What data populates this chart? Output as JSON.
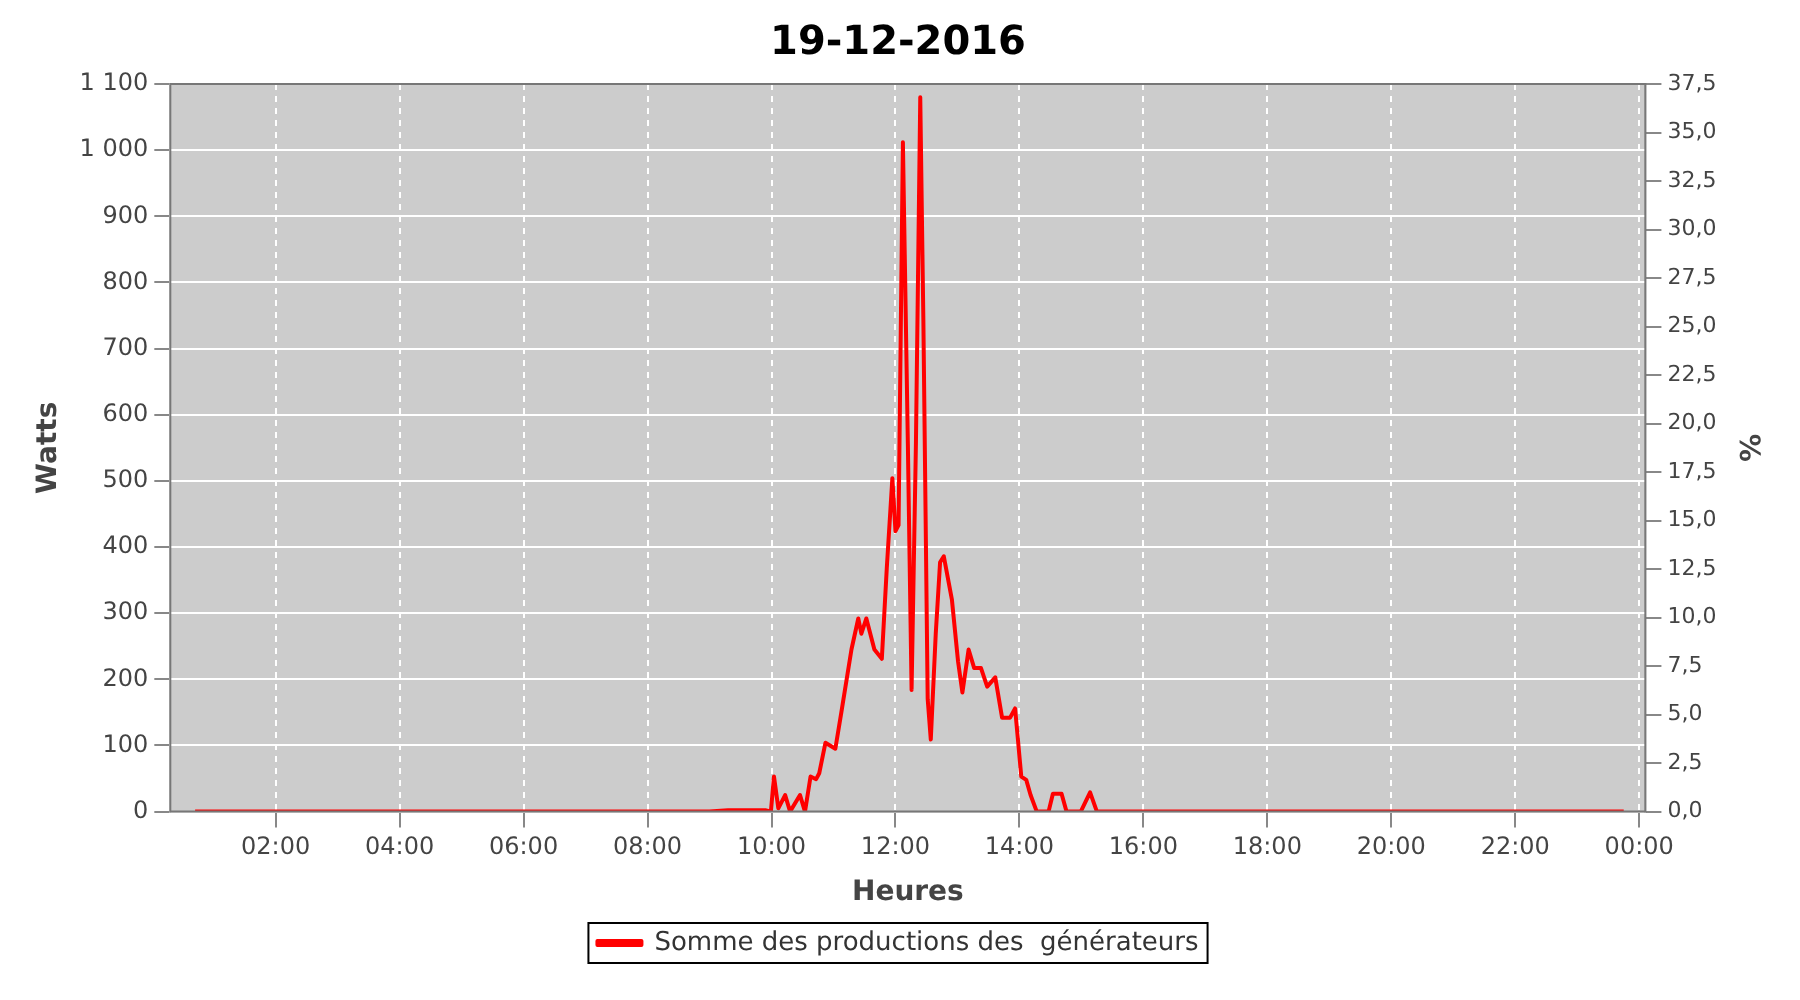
{
  "chart_data": {
    "type": "line",
    "title": "19-12-2016",
    "xlabel": "Heures",
    "ylabel": "Watts",
    "y2label": "%",
    "xlim": [
      0.3,
      24.1
    ],
    "xticks": [
      {
        "value": 2,
        "label": "02:00"
      },
      {
        "value": 4,
        "label": "04:00"
      },
      {
        "value": 6,
        "label": "06:00"
      },
      {
        "value": 8,
        "label": "08:00"
      },
      {
        "value": 10,
        "label": "10:00"
      },
      {
        "value": 12,
        "label": "12:00"
      },
      {
        "value": 14,
        "label": "14:00"
      },
      {
        "value": 16,
        "label": "16:00"
      },
      {
        "value": 18,
        "label": "18:00"
      },
      {
        "value": 20,
        "label": "20:00"
      },
      {
        "value": 22,
        "label": "22:00"
      },
      {
        "value": 24,
        "label": "00:00"
      }
    ],
    "ylim": [
      0,
      1100
    ],
    "yticks": [
      0,
      100,
      200,
      300,
      400,
      500,
      600,
      700,
      800,
      900,
      {
        "value": 1000,
        "label": "1 000"
      },
      {
        "value": 1100,
        "label": "1 100"
      }
    ],
    "y2lim": [
      0,
      37.5
    ],
    "y2ticks": [
      {
        "value": 0,
        "label": "0,0"
      },
      {
        "value": 2.5,
        "label": "2,5"
      },
      {
        "value": 5,
        "label": "5,0"
      },
      {
        "value": 7.5,
        "label": "7,5"
      },
      {
        "value": 10,
        "label": "10,0"
      },
      {
        "value": 12.5,
        "label": "12,5"
      },
      {
        "value": 15,
        "label": "15,0"
      },
      {
        "value": 17.5,
        "label": "17,5"
      },
      {
        "value": 20,
        "label": "20,0"
      },
      {
        "value": 22.5,
        "label": "22,5"
      },
      {
        "value": 25,
        "label": "25,0"
      },
      {
        "value": 27.5,
        "label": "27,5"
      },
      {
        "value": 30,
        "label": "30,0"
      },
      {
        "value": 32.5,
        "label": "32,5"
      },
      {
        "value": 35,
        "label": "35,0"
      },
      {
        "value": 37.5,
        "label": "37,5"
      }
    ],
    "grid": true,
    "legend": "bottom",
    "marker": "none",
    "line_style": "solid",
    "series": [
      {
        "name": "Somme des productions des  générateurs",
        "color": "#ff0000",
        "x": [
          0.7,
          3,
          6,
          9,
          9.3,
          9.9,
          9.99,
          10.04,
          10.11,
          10.22,
          10.3,
          10.46,
          10.54,
          10.63,
          10.72,
          10.77,
          10.87,
          11.03,
          11.13,
          11.29,
          11.4,
          11.45,
          11.53,
          11.66,
          11.78,
          11.86,
          11.95,
          12,
          12.05,
          12.12,
          12.2,
          12.26,
          12.33,
          12.4,
          12.45,
          12.52,
          12.57,
          12.65,
          12.72,
          12.78,
          12.91,
          13.01,
          13.08,
          13.18,
          13.27,
          13.38,
          13.48,
          13.61,
          13.72,
          13.85,
          13.93,
          14.03,
          14.11,
          14.18,
          14.28,
          14.47,
          14.54,
          14.68,
          14.76,
          14.99,
          15.14,
          15.25,
          16,
          20,
          23.75
        ],
        "values": [
          0,
          0,
          0,
          0,
          2,
          2,
          0,
          53,
          5,
          25,
          0,
          25,
          0,
          53,
          49,
          58,
          104,
          95,
          152,
          245,
          292,
          269,
          292,
          245,
          231,
          368,
          504,
          424,
          433,
          1012,
          556,
          184,
          556,
          1080,
          744,
          170,
          109,
          269,
          377,
          386,
          321,
          227,
          180,
          245,
          217,
          217,
          189,
          203,
          142,
          142,
          156,
          53,
          48,
          25,
          0,
          0,
          27,
          27,
          0,
          0,
          29,
          0,
          0,
          0,
          0
        ]
      }
    ]
  }
}
